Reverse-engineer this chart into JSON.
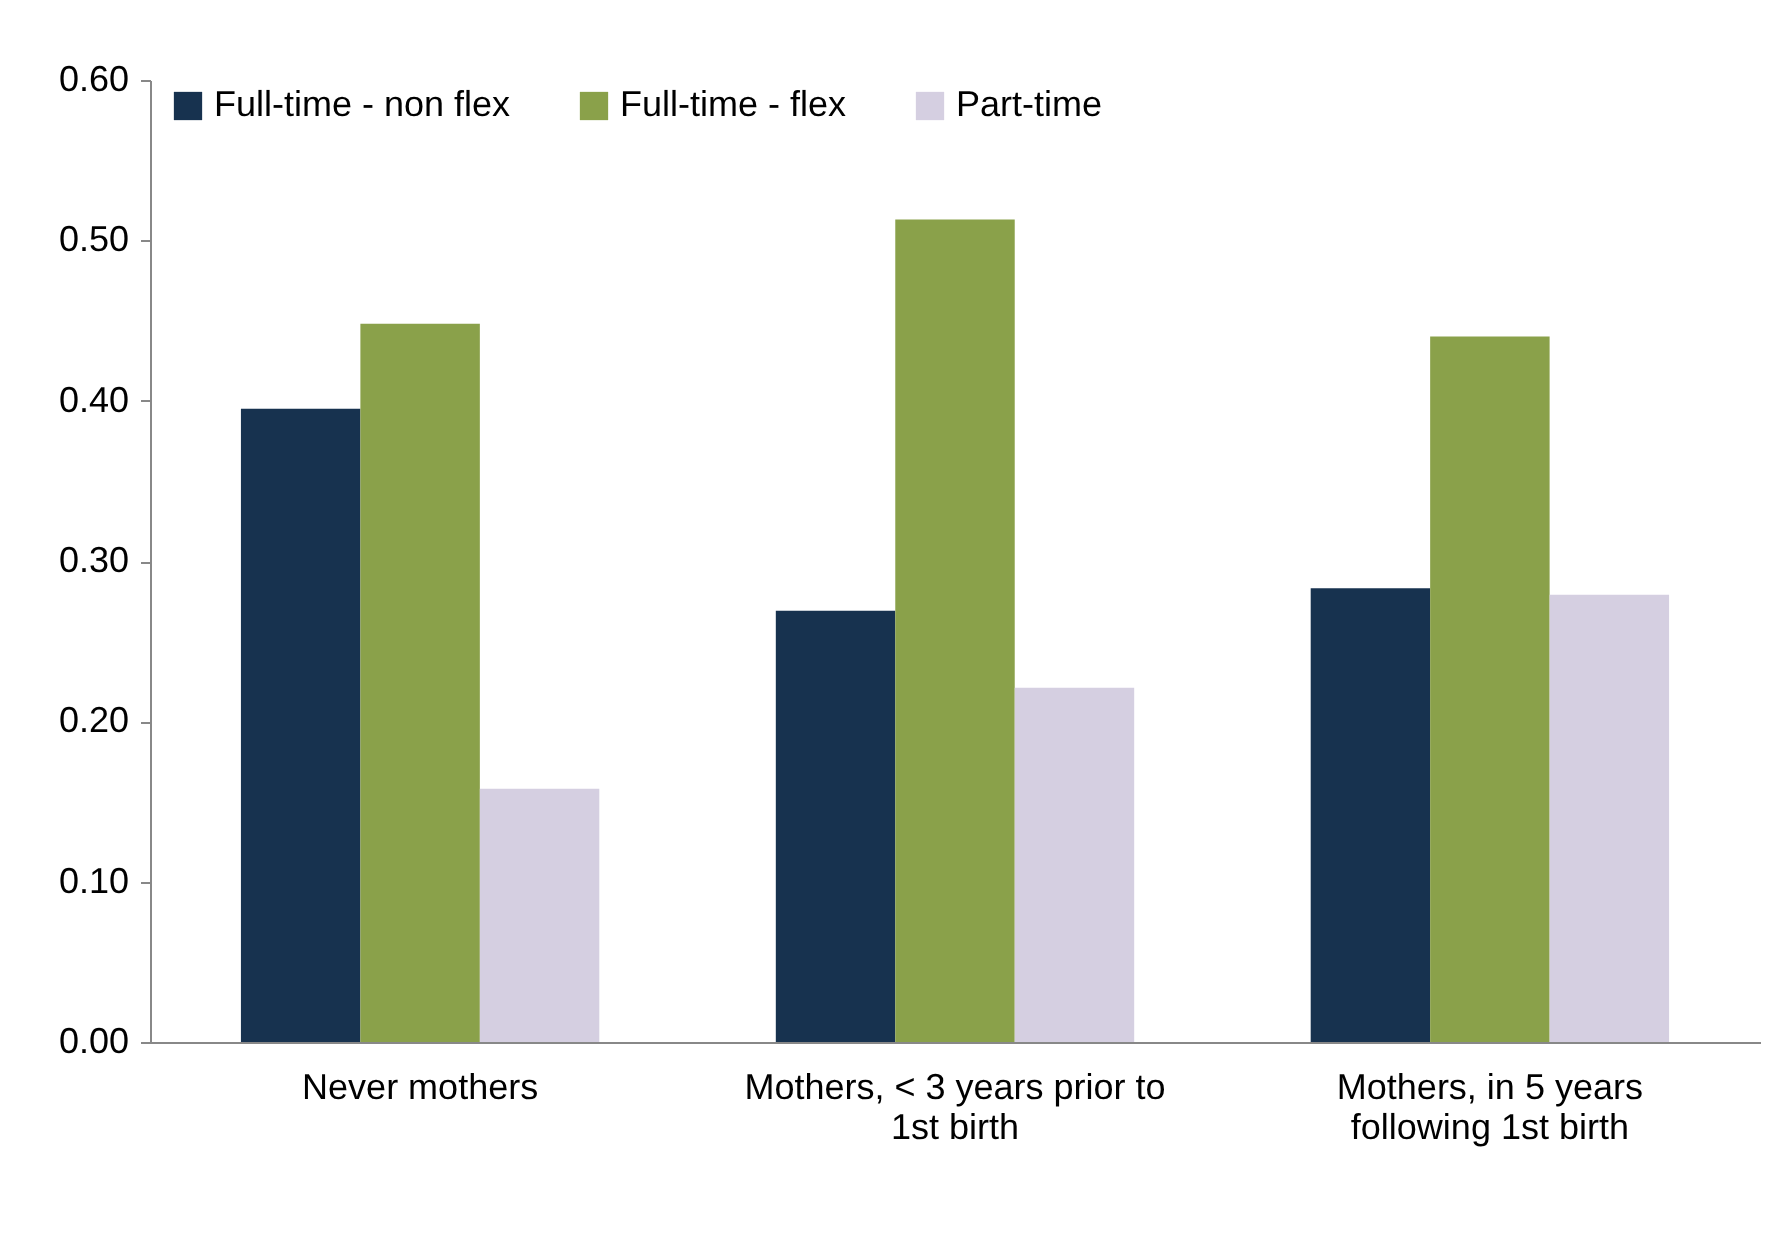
{
  "chart_data": {
    "type": "bar",
    "categories": [
      "Never mothers",
      "Mothers, < 3 years prior to 1st birth",
      "Mothers, in 5 years following 1st birth"
    ],
    "series": [
      {
        "name": "Full-time - non flex",
        "color": "#17324f",
        "values": [
          0.395,
          0.269,
          0.283
        ]
      },
      {
        "name": "Full-time - flex",
        "color": "#8aa14a",
        "values": [
          0.448,
          0.513,
          0.44
        ]
      },
      {
        "name": "Part-time",
        "color": "#d5cfe1",
        "values": [
          0.158,
          0.221,
          0.279
        ]
      }
    ],
    "ylim": [
      0,
      0.6
    ],
    "yticks": [
      {
        "value": 0,
        "label": "0.00"
      },
      {
        "value": 0.1,
        "label": "0.10"
      },
      {
        "value": 0.2,
        "label": "0.20"
      },
      {
        "value": 0.3,
        "label": "0.30"
      },
      {
        "value": 0.4,
        "label": "0.40"
      },
      {
        "value": 0.5,
        "label": "0.50"
      },
      {
        "value": 0.6,
        "label": "0.60"
      }
    ],
    "grid": false,
    "legend": "top left"
  }
}
